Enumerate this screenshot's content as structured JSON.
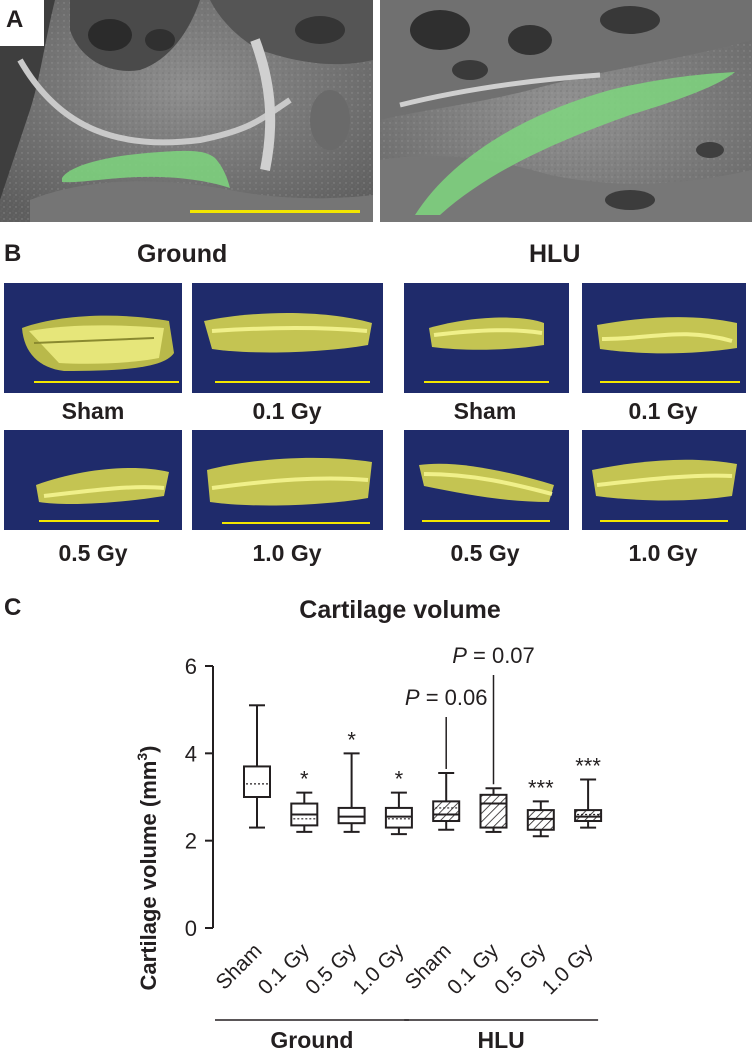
{
  "panels": {
    "a": {
      "letter": "A"
    },
    "b": {
      "letter": "B",
      "group_titles": [
        "Ground",
        "HLU"
      ],
      "captions": {
        "ground_sham": "Sham",
        "ground_01": "0.1 Gy",
        "ground_05": "0.5 Gy",
        "ground_10": "1.0 Gy",
        "hlu_sham": "Sham",
        "hlu_01": "0.1 Gy",
        "hlu_05": "0.5 Gy",
        "hlu_10": "1.0 Gy"
      }
    },
    "c": {
      "letter": "C"
    }
  },
  "colors": {
    "render_background": "#1f2b6b",
    "cartilage_render": "#d9d96a",
    "segmentation_overlay": "#7ed67e",
    "scale_bar": "#f2e600"
  },
  "chart_data": {
    "type": "box",
    "title": "Cartilage volume",
    "ylabel": "Cartilage volume (mm",
    "ylabel_superscript": "3",
    "ylabel_close": ")",
    "ylim": [
      0,
      6
    ],
    "yticks": [
      "0",
      "2",
      "4",
      "6"
    ],
    "categories": [
      "Sham",
      "0.1 Gy",
      "0.5 Gy",
      "1.0 Gy",
      "Sham",
      "0.1 Gy",
      "0.5 Gy",
      "1.0 Gy"
    ],
    "groups": [
      {
        "name": "Ground",
        "categories": [
          0,
          1,
          2,
          3
        ]
      },
      {
        "name": "HLU",
        "categories": [
          4,
          5,
          6,
          7
        ]
      }
    ],
    "boxes": [
      {
        "min": 2.3,
        "q1": 3.0,
        "median": 3.0,
        "q3": 3.7,
        "max": 5.1,
        "mean": 3.3,
        "pattern": "none",
        "sig": ""
      },
      {
        "min": 2.2,
        "q1": 2.35,
        "median": 2.6,
        "q3": 2.85,
        "max": 3.1,
        "mean": 2.5,
        "pattern": "none",
        "sig": "*"
      },
      {
        "min": 2.2,
        "q1": 2.4,
        "median": 2.55,
        "q3": 2.75,
        "max": 4.0,
        "mean": 2.55,
        "pattern": "none",
        "sig": "*"
      },
      {
        "min": 2.15,
        "q1": 2.3,
        "median": 2.55,
        "q3": 2.75,
        "max": 3.1,
        "mean": 2.5,
        "pattern": "none",
        "sig": "*"
      },
      {
        "min": 2.25,
        "q1": 2.45,
        "median": 2.6,
        "q3": 2.9,
        "max": 3.55,
        "mean": 2.75,
        "pattern": "diagonal",
        "sig": ""
      },
      {
        "min": 2.2,
        "q1": 2.3,
        "median": 2.85,
        "q3": 3.05,
        "max": 3.2,
        "mean": 2.85,
        "pattern": "diagonal",
        "sig": ""
      },
      {
        "min": 2.1,
        "q1": 2.25,
        "median": 2.5,
        "q3": 2.7,
        "max": 2.9,
        "mean": 2.5,
        "pattern": "diagonal",
        "sig": "***"
      },
      {
        "min": 2.3,
        "q1": 2.45,
        "median": 2.55,
        "q3": 2.7,
        "max": 3.4,
        "mean": 2.6,
        "pattern": "diagonal",
        "sig": "***"
      }
    ],
    "annotations": [
      {
        "text_italic": "P",
        "text_rest": " = 0.06",
        "category": 4
      },
      {
        "text_italic": "P",
        "text_rest": " = 0.07",
        "category": 5
      }
    ]
  }
}
